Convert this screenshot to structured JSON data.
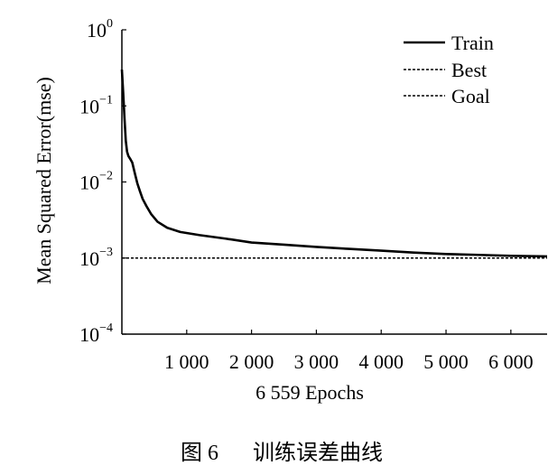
{
  "chart_data": {
    "type": "line",
    "title": "",
    "xlabel": "6 559 Epochs",
    "ylabel": "Mean Squared Error(mse)",
    "yscale": "log",
    "ylim": [
      0.0001,
      1
    ],
    "xlim": [
      0,
      6559
    ],
    "x_ticks": [
      {
        "value": 1000,
        "label": "1 000"
      },
      {
        "value": 2000,
        "label": "2 000"
      },
      {
        "value": 3000,
        "label": "3 000"
      },
      {
        "value": 4000,
        "label": "4 000"
      },
      {
        "value": 5000,
        "label": "5 000"
      },
      {
        "value": 6000,
        "label": "6 000"
      }
    ],
    "y_ticks": [
      {
        "value": 1,
        "base": "10",
        "exp": "0"
      },
      {
        "value": 0.1,
        "base": "10",
        "exp": "−1"
      },
      {
        "value": 0.01,
        "base": "10",
        "exp": "−2"
      },
      {
        "value": 0.001,
        "base": "10",
        "exp": "−3"
      },
      {
        "value": 0.0001,
        "base": "10",
        "exp": "−4"
      }
    ],
    "grid": false,
    "legend_position": "top-right",
    "series": [
      {
        "name": "Train",
        "style": "solid",
        "color": "#000000",
        "x": [
          0,
          20,
          40,
          60,
          80,
          100,
          130,
          160,
          200,
          240,
          280,
          320,
          380,
          450,
          550,
          700,
          900,
          1200,
          1600,
          2000,
          2500,
          3000,
          3500,
          4000,
          4500,
          5000,
          5500,
          6000,
          6559
        ],
        "y": [
          0.3,
          0.15,
          0.07,
          0.035,
          0.025,
          0.022,
          0.02,
          0.018,
          0.013,
          0.0095,
          0.0075,
          0.006,
          0.0048,
          0.0038,
          0.003,
          0.0025,
          0.0022,
          0.002,
          0.0018,
          0.0016,
          0.0015,
          0.0014,
          0.00132,
          0.00125,
          0.00118,
          0.00113,
          0.0011,
          0.00107,
          0.00105
        ]
      },
      {
        "name": "Best",
        "style": "dashed",
        "color": "#000000",
        "x": [
          0,
          6559
        ],
        "y": [
          0.001,
          0.001
        ]
      },
      {
        "name": "Goal",
        "style": "dashed",
        "color": "#000000",
        "x": [
          0,
          6559
        ],
        "y": [
          0.001,
          0.001
        ]
      }
    ]
  },
  "caption": {
    "figure_number": "图 6",
    "text": "训练误差曲线"
  }
}
